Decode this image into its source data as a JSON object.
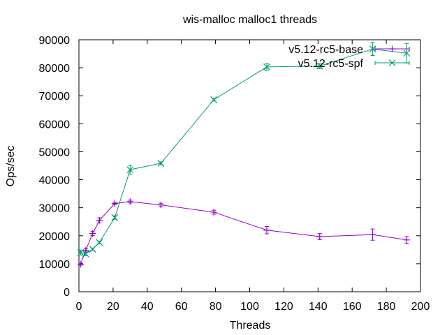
{
  "chart_data": {
    "type": "line",
    "title": "wis-malloc malloc1 threads",
    "xlabel": "Threads",
    "ylabel": "Ops/sec",
    "xlim": [
      0,
      200
    ],
    "ylim": [
      0,
      90000
    ],
    "xticks": [
      0,
      20,
      40,
      60,
      80,
      100,
      120,
      140,
      160,
      180,
      200
    ],
    "yticks": [
      0,
      10000,
      20000,
      30000,
      40000,
      50000,
      60000,
      70000,
      80000,
      90000
    ],
    "grid": false,
    "legend_position": "top-right",
    "series": [
      {
        "name": "v5.12-rc5-base",
        "color": "#9400d3",
        "marker": "plus",
        "x": [
          1,
          4,
          8,
          12,
          21,
          30,
          48,
          79,
          110,
          141,
          172,
          192
        ],
        "y": [
          9800,
          14800,
          20800,
          25500,
          31500,
          32200,
          31000,
          28400,
          22000,
          19700,
          20400,
          18500
        ],
        "err": [
          300,
          600,
          700,
          900,
          400,
          500,
          600,
          700,
          1300,
          1100,
          2000,
          1200
        ]
      },
      {
        "name": "v5.12-rc5-spf",
        "color": "#009e73",
        "marker": "x",
        "x": [
          1,
          4,
          8,
          12,
          21,
          30,
          48,
          79,
          110,
          141,
          172,
          192
        ],
        "y": [
          14000,
          13500,
          15200,
          17600,
          26500,
          43600,
          45900,
          68600,
          80300,
          80600,
          86700,
          85200
        ],
        "err": [
          900,
          600,
          400,
          500,
          600,
          1600,
          500,
          500,
          1200,
          900,
          2300,
          3500
        ]
      }
    ]
  }
}
